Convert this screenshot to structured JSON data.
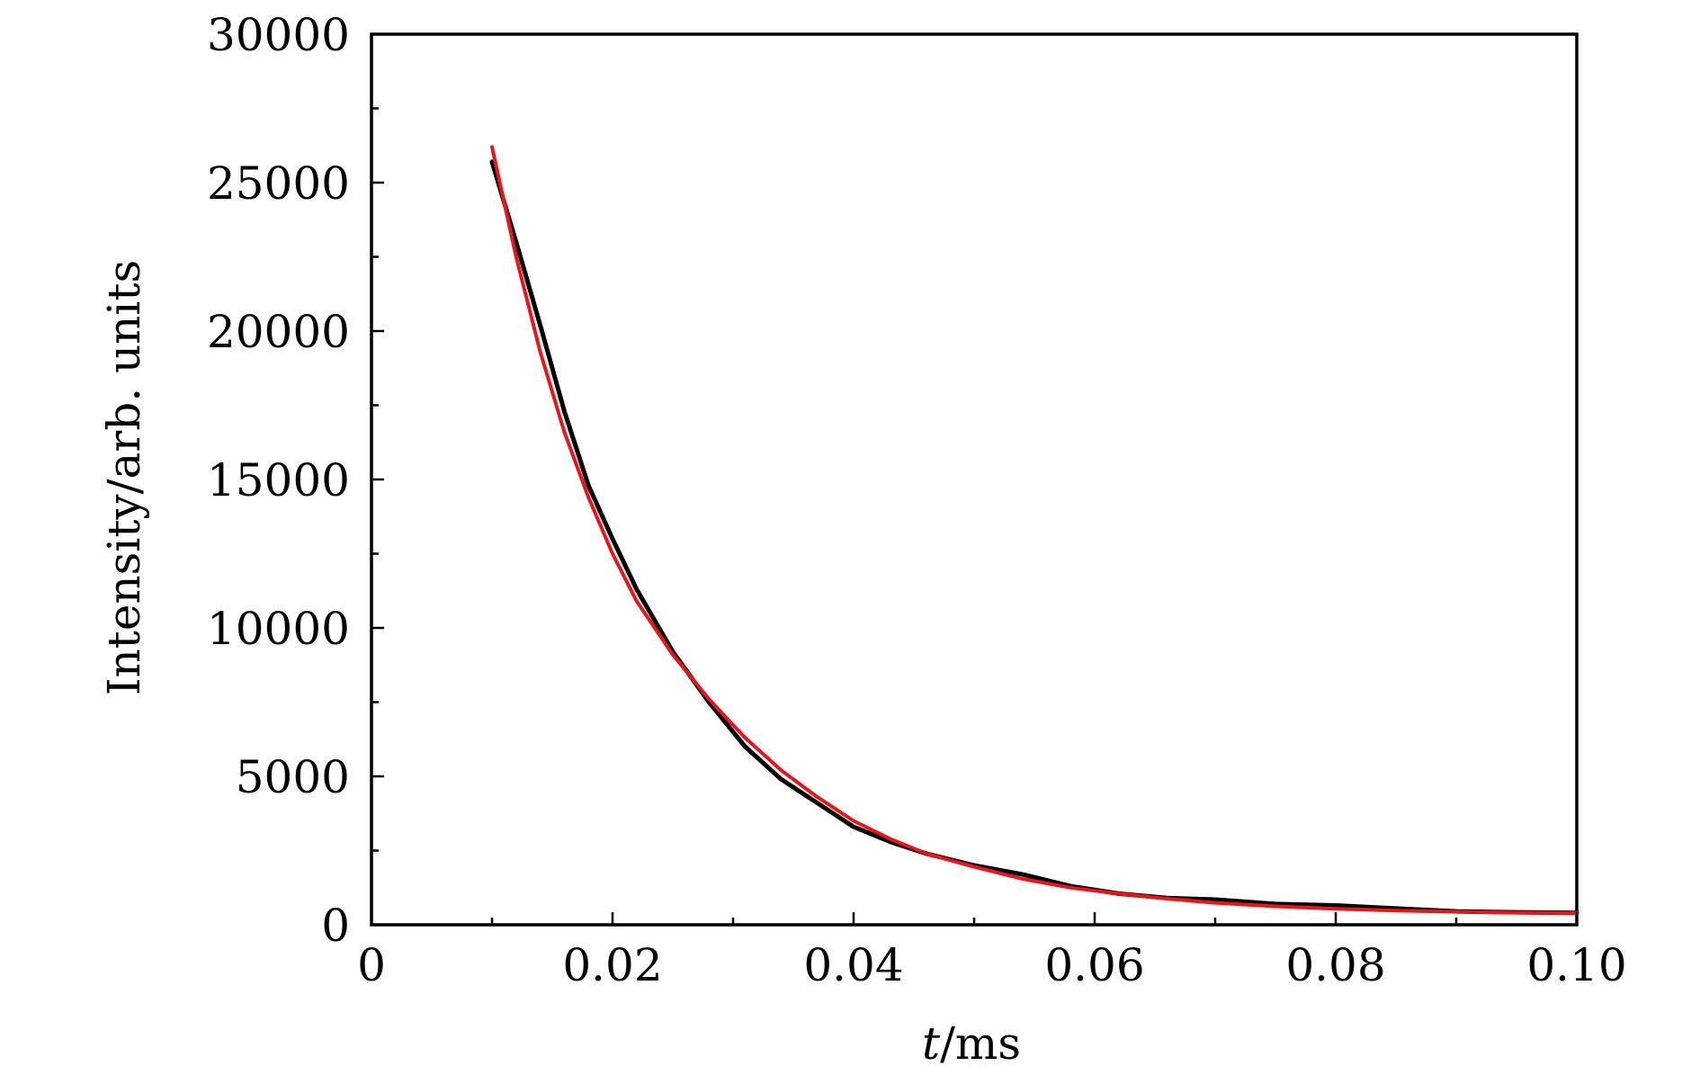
{
  "chart_data": {
    "type": "line",
    "title": "",
    "xlabel_var": "t",
    "xlabel_unit": "/ms",
    "ylabel": "Intensity/arb. units",
    "xlim": [
      0,
      0.1
    ],
    "ylim": [
      0,
      30000
    ],
    "x_ticks": [
      0,
      0.02,
      0.04,
      0.06,
      0.08,
      0.1
    ],
    "x_tick_labels": [
      "0",
      "0.02",
      "0.04",
      "0.06",
      "0.08",
      "0.10"
    ],
    "x_minor_ticks": [
      0.01,
      0.03,
      0.05,
      0.07,
      0.09
    ],
    "y_ticks": [
      0,
      5000,
      10000,
      15000,
      20000,
      25000,
      30000
    ],
    "y_tick_labels": [
      "0",
      "5000",
      "10000",
      "15000",
      "20000",
      "25000",
      "30000"
    ],
    "y_minor_ticks": [
      2500,
      7500,
      12500,
      17500,
      22500,
      27500
    ],
    "grid": false,
    "legend": "none",
    "series": [
      {
        "color": "#000000",
        "x": [
          0.01,
          0.012,
          0.014,
          0.016,
          0.018,
          0.02,
          0.022,
          0.025,
          0.028,
          0.031,
          0.034,
          0.037,
          0.04,
          0.043,
          0.046,
          0.05,
          0.054,
          0.058,
          0.062,
          0.066,
          0.07,
          0.075,
          0.08,
          0.085,
          0.09,
          0.095,
          0.1
        ],
        "y": [
          25700,
          23000,
          20200,
          17300,
          14800,
          13000,
          11300,
          9200,
          7500,
          6000,
          4900,
          4100,
          3300,
          2800,
          2400,
          2000,
          1700,
          1300,
          1050,
          900,
          850,
          700,
          650,
          550,
          450,
          420,
          400
        ]
      },
      {
        "color": "#e8151b",
        "x": [
          0.01,
          0.012,
          0.014,
          0.016,
          0.018,
          0.02,
          0.022,
          0.025,
          0.028,
          0.031,
          0.034,
          0.037,
          0.04,
          0.043,
          0.046,
          0.05,
          0.054,
          0.058,
          0.062,
          0.066,
          0.07,
          0.075,
          0.08,
          0.085,
          0.09,
          0.095,
          0.1
        ],
        "y": [
          26200,
          22500,
          19300,
          16600,
          14400,
          12500,
          10900,
          9100,
          7600,
          6300,
          5200,
          4300,
          3500,
          2900,
          2400,
          1950,
          1550,
          1250,
          1050,
          880,
          740,
          620,
          540,
          480,
          440,
          410,
          390
        ]
      }
    ]
  }
}
